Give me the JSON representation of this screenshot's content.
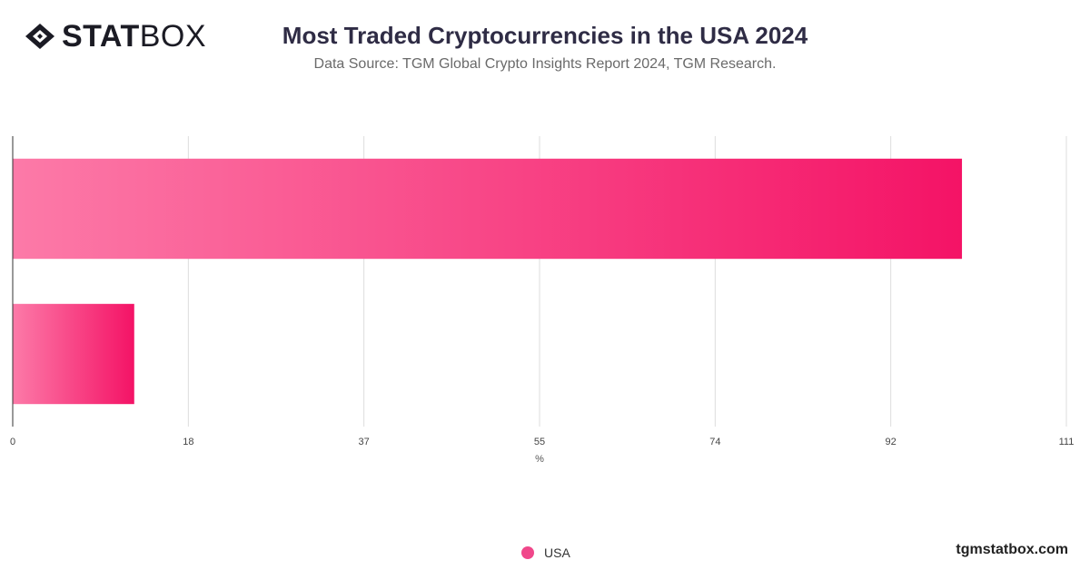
{
  "brand": {
    "bold": "STAT",
    "light": "BOX",
    "icon": "diamond-logo-icon"
  },
  "title": "Most Traded Cryptocurrencies in the USA 2024",
  "subtitle": "Data Source: TGM Global Crypto Insights Report 2024, TGM Research.",
  "watermark": "tgmstatbox.com",
  "legend": [
    {
      "label": "USA",
      "color": "#f0478a"
    }
  ],
  "colors": {
    "bar_start": "#fc7aa8",
    "bar_end": "#f41366",
    "grid": "#dddddd",
    "axis": "#333333"
  },
  "chart_data": {
    "type": "bar",
    "orientation": "horizontal",
    "categories": [
      "",
      ""
    ],
    "series": [
      {
        "name": "USA",
        "values": [
          100,
          12.8
        ]
      }
    ],
    "xlabel": "%",
    "ylabel": "",
    "xlim": [
      0,
      111
    ],
    "xticks": [
      "0",
      "18",
      "37",
      "55",
      "74",
      "92",
      "111"
    ],
    "grid": true,
    "legend_position": "bottom"
  }
}
